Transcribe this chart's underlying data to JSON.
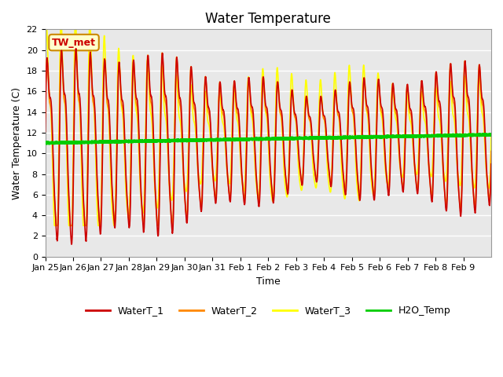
{
  "title": "Water Temperature",
  "xlabel": "Time",
  "ylabel": "Water Temperature (C)",
  "ylim": [
    0,
    22
  ],
  "yticks": [
    0,
    2,
    4,
    6,
    8,
    10,
    12,
    14,
    16,
    18,
    20,
    22
  ],
  "x_labels": [
    "Jan 25",
    "Jan 26",
    "Jan 27",
    "Jan 28",
    "Jan 29",
    "Jan 30",
    "Jan 31",
    "Feb 1",
    "Feb 2",
    "Feb 3",
    "Feb 4",
    "Feb 5",
    "Feb 6",
    "Feb 7",
    "Feb 8",
    "Feb 9"
  ],
  "colors": {
    "WaterT_1": "#CC0000",
    "WaterT_2": "#FF8800",
    "WaterT_3": "#FFFF00",
    "H2O_Temp": "#00CC00"
  },
  "line_widths": {
    "WaterT_1": 1.2,
    "WaterT_2": 1.2,
    "WaterT_3": 1.2,
    "H2O_Temp": 2.5
  },
  "annotation_text": "TW_met",
  "annotation_color": "#CC0000",
  "annotation_bg": "#FFFFCC",
  "annotation_border": "#CC8800",
  "plot_bg_color": "#E8E8E8",
  "title_fontsize": 12,
  "axis_fontsize": 9,
  "tick_fontsize": 8,
  "legend_fontsize": 9
}
